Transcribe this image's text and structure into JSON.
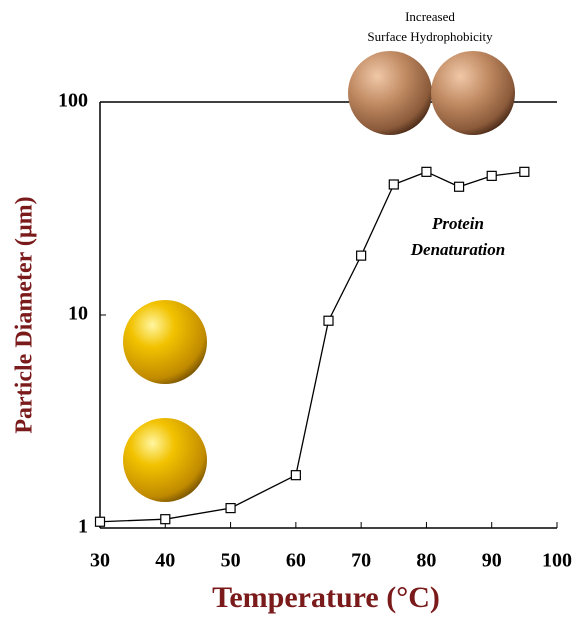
{
  "chart_data": {
    "type": "line",
    "x_label": "Temperature (°C)",
    "y_label": "Particle Diameter (µm)",
    "x": [
      30,
      40,
      50,
      60,
      65,
      70,
      75,
      80,
      85,
      90,
      95
    ],
    "series": [
      {
        "color": "#000000",
        "values": [
          1.07,
          1.1,
          1.24,
          1.77,
          9.4,
          19,
          41,
          47,
          40,
          45,
          47
        ]
      }
    ],
    "xlim": [
      30,
      100
    ],
    "xticks": [
      30,
      40,
      50,
      60,
      70,
      80,
      90,
      100
    ],
    "ylim": [
      1,
      100
    ],
    "yticks": [
      1,
      10,
      100
    ],
    "yscale": "log",
    "annotations": [
      "Increased",
      "Surface Hydrophobicity",
      "Protein",
      "Denaturation"
    ]
  }
}
